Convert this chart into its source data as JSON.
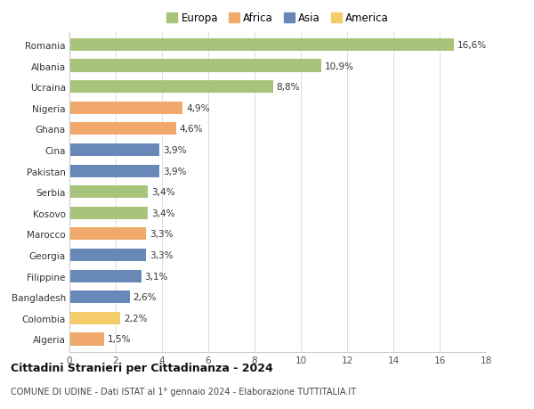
{
  "categories": [
    "Romania",
    "Albania",
    "Ucraina",
    "Nigeria",
    "Ghana",
    "Cina",
    "Pakistan",
    "Serbia",
    "Kosovo",
    "Marocco",
    "Georgia",
    "Filippine",
    "Bangladesh",
    "Colombia",
    "Algeria"
  ],
  "values": [
    16.6,
    10.9,
    8.8,
    4.9,
    4.6,
    3.9,
    3.9,
    3.4,
    3.4,
    3.3,
    3.3,
    3.1,
    2.6,
    2.2,
    1.5
  ],
  "labels": [
    "16,6%",
    "10,9%",
    "8,8%",
    "4,9%",
    "4,6%",
    "3,9%",
    "3,9%",
    "3,4%",
    "3,4%",
    "3,3%",
    "3,3%",
    "3,1%",
    "2,6%",
    "2,2%",
    "1,5%"
  ],
  "colors": [
    "#a8c47a",
    "#a8c47a",
    "#a8c47a",
    "#f0a96a",
    "#f0a96a",
    "#6888b8",
    "#6888b8",
    "#a8c47a",
    "#a8c47a",
    "#f0a96a",
    "#6888b8",
    "#6888b8",
    "#6888b8",
    "#f5cc6a",
    "#f0a96a"
  ],
  "legend_labels": [
    "Europa",
    "Africa",
    "Asia",
    "America"
  ],
  "legend_colors": [
    "#a8c47a",
    "#f0a96a",
    "#6888b8",
    "#f5cc6a"
  ],
  "title": "Cittadini Stranieri per Cittadinanza - 2024",
  "subtitle": "COMUNE DI UDINE - Dati ISTAT al 1° gennaio 2024 - Elaborazione TUTTITALIA.IT",
  "xlim": [
    0,
    18
  ],
  "xticks": [
    0,
    2,
    4,
    6,
    8,
    10,
    12,
    14,
    16,
    18
  ],
  "bg_color": "#ffffff",
  "grid_color": "#dddddd"
}
